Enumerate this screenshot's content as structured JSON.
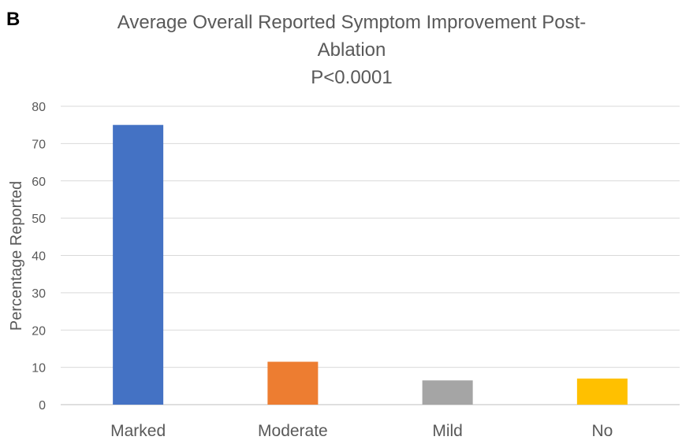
{
  "panel_label": "B",
  "chart_data": {
    "type": "bar",
    "title_lines": [
      "Average Overall Reported Symptom Improvement Post-",
      "Ablation",
      "P<0.0001"
    ],
    "categories": [
      "Marked",
      "Moderate",
      "Mild",
      "No"
    ],
    "values": [
      75,
      11.5,
      6.5,
      7
    ],
    "colors": [
      "#4472c4",
      "#ed7d31",
      "#a5a5a5",
      "#ffc000"
    ],
    "xlabel": "",
    "ylabel": "Percentage Reported",
    "ylim": [
      0,
      80
    ],
    "yticks": [
      "0",
      "10",
      "20",
      "30",
      "40",
      "50",
      "60",
      "70",
      "80"
    ],
    "grid": true,
    "legend": "none"
  }
}
